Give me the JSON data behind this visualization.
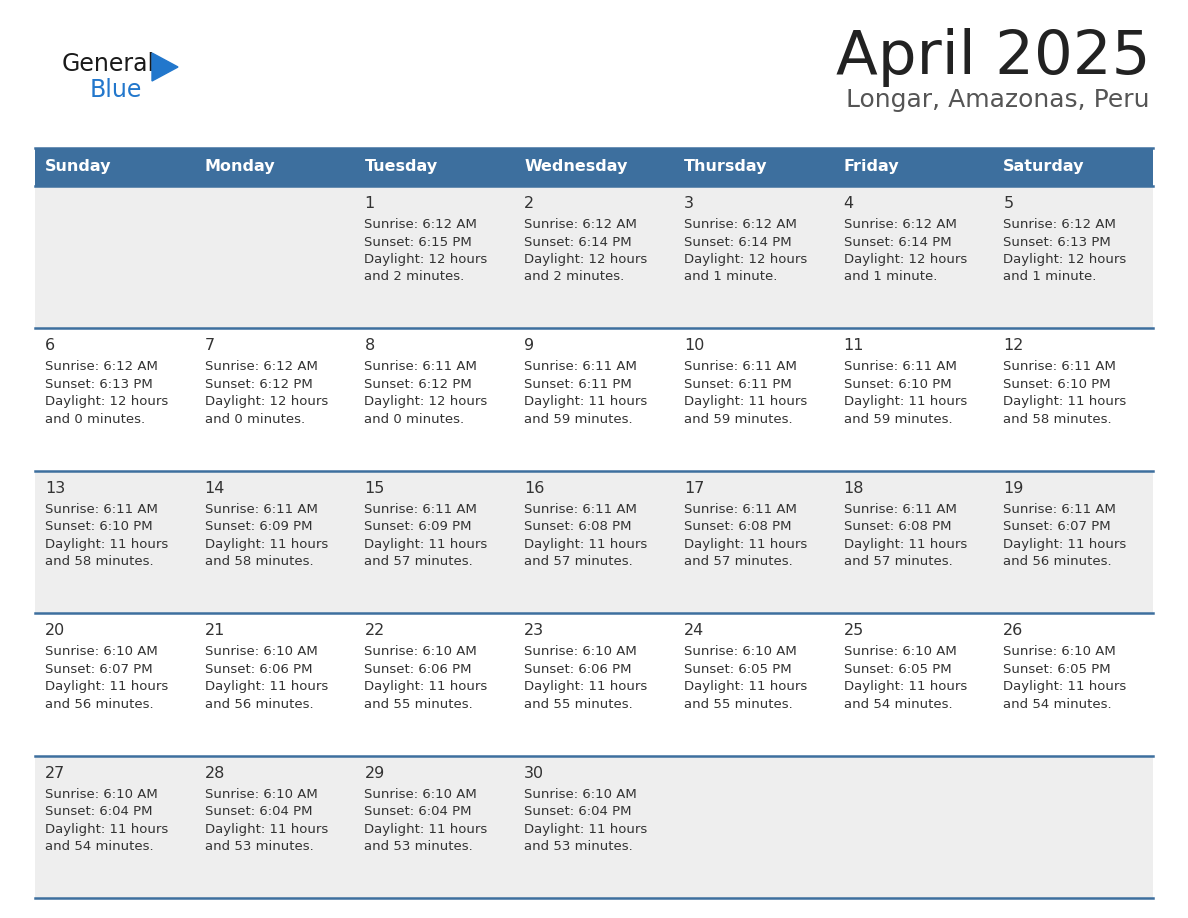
{
  "title": "April 2025",
  "subtitle": "Longar, Amazonas, Peru",
  "header_bg_color": "#3d6f9e",
  "header_text_color": "#FFFFFF",
  "row_bg_colors": [
    "#EEEEEE",
    "#FFFFFF",
    "#EEEEEE",
    "#FFFFFF",
    "#EEEEEE"
  ],
  "day_headers": [
    "Sunday",
    "Monday",
    "Tuesday",
    "Wednesday",
    "Thursday",
    "Friday",
    "Saturday"
  ],
  "title_color": "#222222",
  "subtitle_color": "#555555",
  "cell_text_color": "#333333",
  "day_num_color": "#333333",
  "separator_color": "#3d6f9e",
  "logo_general_color": "#1a1a1a",
  "logo_blue_color": "#2277CC",
  "weeks": [
    [
      {
        "day": "",
        "lines": []
      },
      {
        "day": "",
        "lines": []
      },
      {
        "day": "1",
        "lines": [
          "Sunrise: 6:12 AM",
          "Sunset: 6:15 PM",
          "Daylight: 12 hours",
          "and 2 minutes."
        ]
      },
      {
        "day": "2",
        "lines": [
          "Sunrise: 6:12 AM",
          "Sunset: 6:14 PM",
          "Daylight: 12 hours",
          "and 2 minutes."
        ]
      },
      {
        "day": "3",
        "lines": [
          "Sunrise: 6:12 AM",
          "Sunset: 6:14 PM",
          "Daylight: 12 hours",
          "and 1 minute."
        ]
      },
      {
        "day": "4",
        "lines": [
          "Sunrise: 6:12 AM",
          "Sunset: 6:14 PM",
          "Daylight: 12 hours",
          "and 1 minute."
        ]
      },
      {
        "day": "5",
        "lines": [
          "Sunrise: 6:12 AM",
          "Sunset: 6:13 PM",
          "Daylight: 12 hours",
          "and 1 minute."
        ]
      }
    ],
    [
      {
        "day": "6",
        "lines": [
          "Sunrise: 6:12 AM",
          "Sunset: 6:13 PM",
          "Daylight: 12 hours",
          "and 0 minutes."
        ]
      },
      {
        "day": "7",
        "lines": [
          "Sunrise: 6:12 AM",
          "Sunset: 6:12 PM",
          "Daylight: 12 hours",
          "and 0 minutes."
        ]
      },
      {
        "day": "8",
        "lines": [
          "Sunrise: 6:11 AM",
          "Sunset: 6:12 PM",
          "Daylight: 12 hours",
          "and 0 minutes."
        ]
      },
      {
        "day": "9",
        "lines": [
          "Sunrise: 6:11 AM",
          "Sunset: 6:11 PM",
          "Daylight: 11 hours",
          "and 59 minutes."
        ]
      },
      {
        "day": "10",
        "lines": [
          "Sunrise: 6:11 AM",
          "Sunset: 6:11 PM",
          "Daylight: 11 hours",
          "and 59 minutes."
        ]
      },
      {
        "day": "11",
        "lines": [
          "Sunrise: 6:11 AM",
          "Sunset: 6:10 PM",
          "Daylight: 11 hours",
          "and 59 minutes."
        ]
      },
      {
        "day": "12",
        "lines": [
          "Sunrise: 6:11 AM",
          "Sunset: 6:10 PM",
          "Daylight: 11 hours",
          "and 58 minutes."
        ]
      }
    ],
    [
      {
        "day": "13",
        "lines": [
          "Sunrise: 6:11 AM",
          "Sunset: 6:10 PM",
          "Daylight: 11 hours",
          "and 58 minutes."
        ]
      },
      {
        "day": "14",
        "lines": [
          "Sunrise: 6:11 AM",
          "Sunset: 6:09 PM",
          "Daylight: 11 hours",
          "and 58 minutes."
        ]
      },
      {
        "day": "15",
        "lines": [
          "Sunrise: 6:11 AM",
          "Sunset: 6:09 PM",
          "Daylight: 11 hours",
          "and 57 minutes."
        ]
      },
      {
        "day": "16",
        "lines": [
          "Sunrise: 6:11 AM",
          "Sunset: 6:08 PM",
          "Daylight: 11 hours",
          "and 57 minutes."
        ]
      },
      {
        "day": "17",
        "lines": [
          "Sunrise: 6:11 AM",
          "Sunset: 6:08 PM",
          "Daylight: 11 hours",
          "and 57 minutes."
        ]
      },
      {
        "day": "18",
        "lines": [
          "Sunrise: 6:11 AM",
          "Sunset: 6:08 PM",
          "Daylight: 11 hours",
          "and 57 minutes."
        ]
      },
      {
        "day": "19",
        "lines": [
          "Sunrise: 6:11 AM",
          "Sunset: 6:07 PM",
          "Daylight: 11 hours",
          "and 56 minutes."
        ]
      }
    ],
    [
      {
        "day": "20",
        "lines": [
          "Sunrise: 6:10 AM",
          "Sunset: 6:07 PM",
          "Daylight: 11 hours",
          "and 56 minutes."
        ]
      },
      {
        "day": "21",
        "lines": [
          "Sunrise: 6:10 AM",
          "Sunset: 6:06 PM",
          "Daylight: 11 hours",
          "and 56 minutes."
        ]
      },
      {
        "day": "22",
        "lines": [
          "Sunrise: 6:10 AM",
          "Sunset: 6:06 PM",
          "Daylight: 11 hours",
          "and 55 minutes."
        ]
      },
      {
        "day": "23",
        "lines": [
          "Sunrise: 6:10 AM",
          "Sunset: 6:06 PM",
          "Daylight: 11 hours",
          "and 55 minutes."
        ]
      },
      {
        "day": "24",
        "lines": [
          "Sunrise: 6:10 AM",
          "Sunset: 6:05 PM",
          "Daylight: 11 hours",
          "and 55 minutes."
        ]
      },
      {
        "day": "25",
        "lines": [
          "Sunrise: 6:10 AM",
          "Sunset: 6:05 PM",
          "Daylight: 11 hours",
          "and 54 minutes."
        ]
      },
      {
        "day": "26",
        "lines": [
          "Sunrise: 6:10 AM",
          "Sunset: 6:05 PM",
          "Daylight: 11 hours",
          "and 54 minutes."
        ]
      }
    ],
    [
      {
        "day": "27",
        "lines": [
          "Sunrise: 6:10 AM",
          "Sunset: 6:04 PM",
          "Daylight: 11 hours",
          "and 54 minutes."
        ]
      },
      {
        "day": "28",
        "lines": [
          "Sunrise: 6:10 AM",
          "Sunset: 6:04 PM",
          "Daylight: 11 hours",
          "and 53 minutes."
        ]
      },
      {
        "day": "29",
        "lines": [
          "Sunrise: 6:10 AM",
          "Sunset: 6:04 PM",
          "Daylight: 11 hours",
          "and 53 minutes."
        ]
      },
      {
        "day": "30",
        "lines": [
          "Sunrise: 6:10 AM",
          "Sunset: 6:04 PM",
          "Daylight: 11 hours",
          "and 53 minutes."
        ]
      },
      {
        "day": "",
        "lines": []
      },
      {
        "day": "",
        "lines": []
      },
      {
        "day": "",
        "lines": []
      }
    ]
  ]
}
